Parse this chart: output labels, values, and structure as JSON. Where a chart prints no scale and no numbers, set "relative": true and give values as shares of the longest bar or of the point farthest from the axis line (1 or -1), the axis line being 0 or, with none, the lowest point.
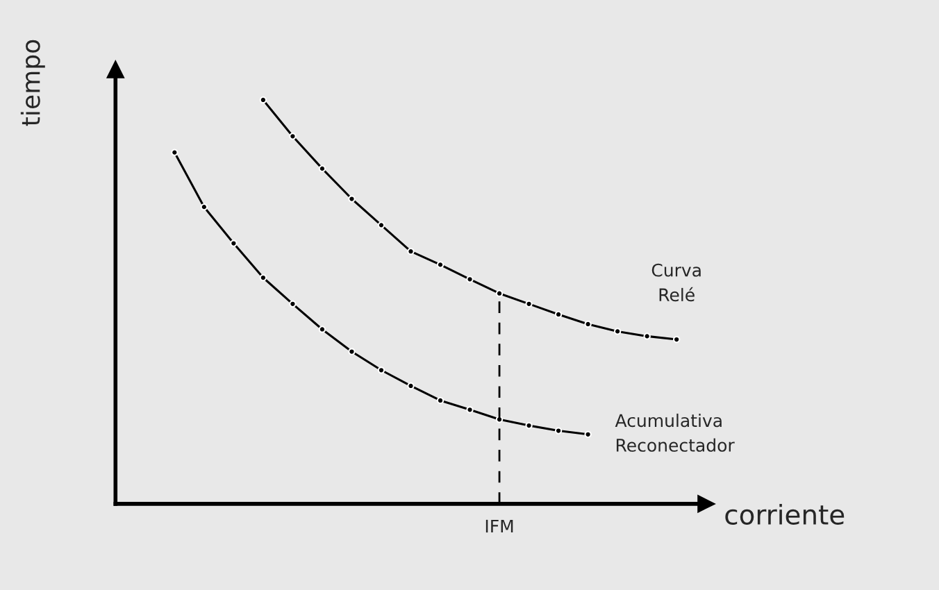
{
  "chart_data": {
    "type": "line",
    "xlabel": "corriente",
    "ylabel": "tiempo",
    "relative": true,
    "categories": [
      null,
      null,
      null,
      null,
      null,
      null,
      null,
      null,
      null,
      null,
      null,
      null,
      null,
      null,
      null,
      null,
      null,
      null,
      null
    ],
    "series": [
      {
        "name": "Curva\nRelé",
        "color": "#000000",
        "values": [
          null,
          null,
          null,
          null,
          1,
          0.91,
          0.83,
          0.755,
          0.69,
          0.625,
          0.592,
          0.556,
          0.521,
          0.495,
          0.469,
          0.445,
          0.427,
          0.415,
          0.407
        ]
      },
      {
        "name": "Acumulativa\nReconectador",
        "color": "#000000",
        "values": [
          null,
          0.87,
          0.735,
          0.645,
          0.56,
          0.495,
          0.432,
          0.377,
          0.331,
          0.292,
          0.256,
          0.233,
          0.209,
          0.194,
          0.181,
          0.172,
          null,
          null,
          null
        ]
      }
    ],
    "annotations": [
      "IFM"
    ],
    "marker": "circle",
    "line_style": "solid"
  }
}
